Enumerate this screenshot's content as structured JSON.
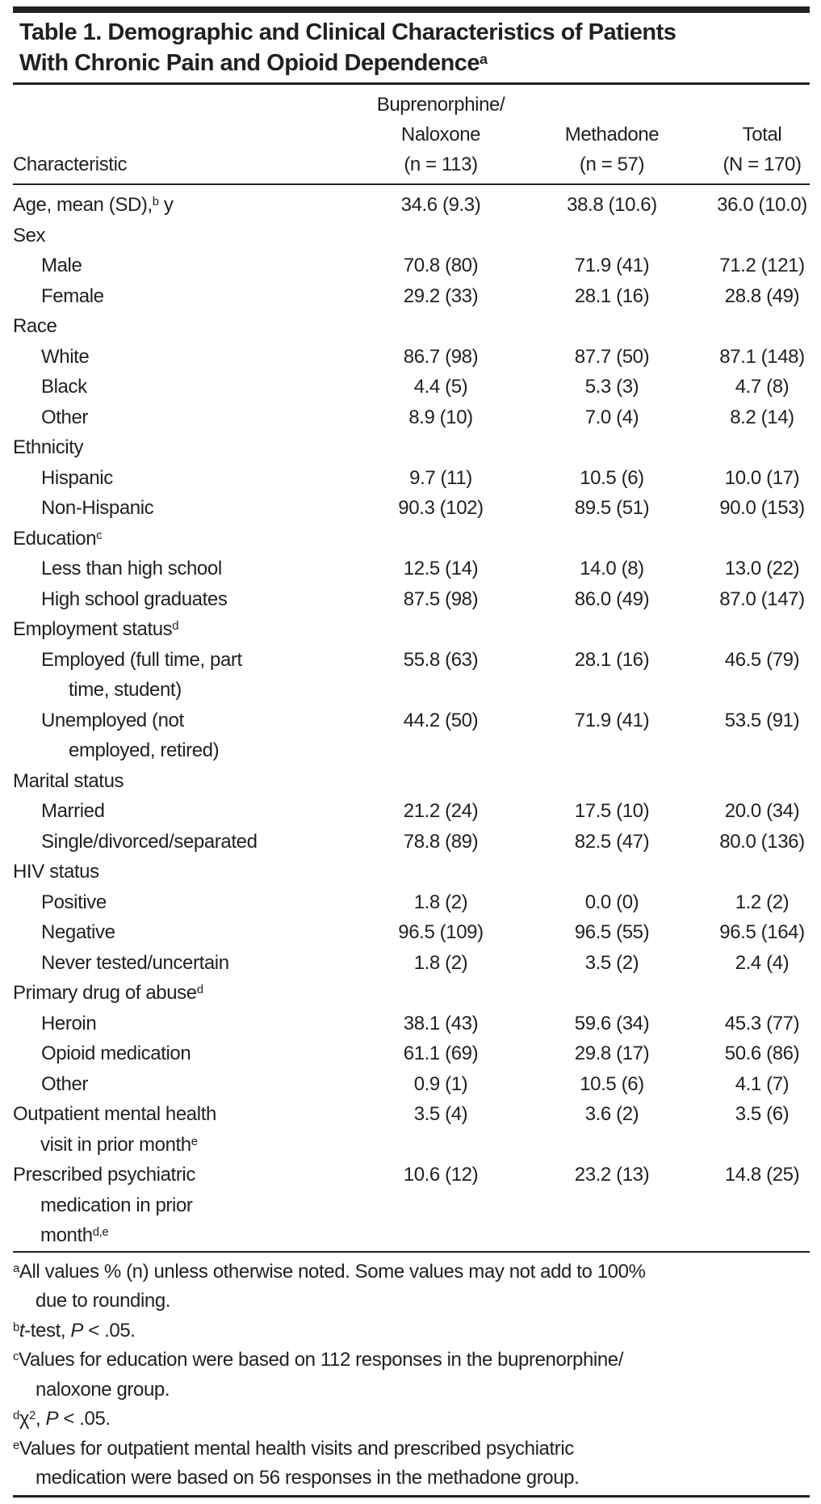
{
  "colors": {
    "ink": "#231f20",
    "background": "#ffffff"
  },
  "title": {
    "lines": [
      "Table 1. Demographic and Clinical Characteristics of Patients",
      "With Chronic Pain and Opioid Dependence^{a}"
    ]
  },
  "table": {
    "header": {
      "characteristic": "Characteristic",
      "columns": [
        {
          "lines": [
            "Buprenorphine/",
            "Naloxone",
            "(n = 113)"
          ]
        },
        {
          "lines": [
            "",
            "Methadone",
            "(n = 57)"
          ]
        },
        {
          "lines": [
            "",
            "Total",
            "(N = 170)"
          ]
        }
      ]
    },
    "rows": [
      {
        "indent": 0,
        "label_lines": [
          "Age, mean (SD),^{b} y"
        ],
        "values": [
          "34.6 (9.3)",
          "38.8 (10.6)",
          "36.0 (10.0)"
        ]
      },
      {
        "indent": 0,
        "label_lines": [
          "Sex"
        ],
        "values": [
          "",
          "",
          ""
        ]
      },
      {
        "indent": 1,
        "label_lines": [
          "Male"
        ],
        "values": [
          "70.8 (80)",
          "71.9 (41)",
          "71.2 (121)"
        ]
      },
      {
        "indent": 1,
        "label_lines": [
          "Female"
        ],
        "values": [
          "29.2 (33)",
          "28.1 (16)",
          "28.8 (49)"
        ]
      },
      {
        "indent": 0,
        "label_lines": [
          "Race"
        ],
        "values": [
          "",
          "",
          ""
        ]
      },
      {
        "indent": 1,
        "label_lines": [
          "White"
        ],
        "values": [
          "86.7 (98)",
          "87.7 (50)",
          "87.1 (148)"
        ]
      },
      {
        "indent": 1,
        "label_lines": [
          "Black"
        ],
        "values": [
          "4.4 (5)",
          "5.3 (3)",
          "4.7 (8)"
        ]
      },
      {
        "indent": 1,
        "label_lines": [
          "Other"
        ],
        "values": [
          "8.9 (10)",
          "7.0 (4)",
          "8.2 (14)"
        ]
      },
      {
        "indent": 0,
        "label_lines": [
          "Ethnicity"
        ],
        "values": [
          "",
          "",
          ""
        ]
      },
      {
        "indent": 1,
        "label_lines": [
          "Hispanic"
        ],
        "values": [
          "9.7 (11)",
          "10.5 (6)",
          "10.0 (17)"
        ]
      },
      {
        "indent": 1,
        "label_lines": [
          "Non-Hispanic"
        ],
        "values": [
          "90.3 (102)",
          "89.5 (51)",
          "90.0 (153)"
        ]
      },
      {
        "indent": 0,
        "label_lines": [
          "Education^{c}"
        ],
        "values": [
          "",
          "",
          ""
        ]
      },
      {
        "indent": 1,
        "label_lines": [
          "Less than high school"
        ],
        "values": [
          "12.5 (14)",
          "14.0 (8)",
          "13.0 (22)"
        ]
      },
      {
        "indent": 1,
        "label_lines": [
          "High school graduates"
        ],
        "values": [
          "87.5 (98)",
          "86.0 (49)",
          "87.0 (147)"
        ]
      },
      {
        "indent": 0,
        "label_lines": [
          "Employment status^{d}"
        ],
        "values": [
          "",
          "",
          ""
        ]
      },
      {
        "indent": 1,
        "label_lines": [
          "Employed (full time, part",
          "time, student)"
        ],
        "values": [
          "55.8 (63)",
          "28.1 (16)",
          "46.5 (79)"
        ]
      },
      {
        "indent": 1,
        "label_lines": [
          "Unemployed (not",
          "employed, retired)"
        ],
        "values": [
          "44.2 (50)",
          "71.9 (41)",
          "53.5 (91)"
        ]
      },
      {
        "indent": 0,
        "label_lines": [
          "Marital status"
        ],
        "values": [
          "",
          "",
          ""
        ]
      },
      {
        "indent": 1,
        "label_lines": [
          "Married"
        ],
        "values": [
          "21.2 (24)",
          "17.5 (10)",
          "20.0 (34)"
        ]
      },
      {
        "indent": 1,
        "label_lines": [
          "Single/divorced/separated"
        ],
        "values": [
          "78.8 (89)",
          "82.5 (47)",
          "80.0 (136)"
        ]
      },
      {
        "indent": 0,
        "label_lines": [
          "HIV status"
        ],
        "values": [
          "",
          "",
          ""
        ]
      },
      {
        "indent": 1,
        "label_lines": [
          "Positive"
        ],
        "values": [
          "1.8 (2)",
          "0.0 (0)",
          "1.2 (2)"
        ]
      },
      {
        "indent": 1,
        "label_lines": [
          "Negative"
        ],
        "values": [
          "96.5 (109)",
          "96.5 (55)",
          "96.5 (164)"
        ]
      },
      {
        "indent": 1,
        "label_lines": [
          "Never tested/uncertain"
        ],
        "values": [
          "1.8 (2)",
          "3.5 (2)",
          "2.4 (4)"
        ]
      },
      {
        "indent": 0,
        "label_lines": [
          "Primary drug of abuse^{d}"
        ],
        "values": [
          "",
          "",
          ""
        ]
      },
      {
        "indent": 1,
        "label_lines": [
          "Heroin"
        ],
        "values": [
          "38.1 (43)",
          "59.6 (34)",
          "45.3 (77)"
        ]
      },
      {
        "indent": 1,
        "label_lines": [
          "Opioid medication"
        ],
        "values": [
          "61.1 (69)",
          "29.8 (17)",
          "50.6 (86)"
        ]
      },
      {
        "indent": 1,
        "label_lines": [
          "Other"
        ],
        "values": [
          "0.9 (1)",
          "10.5 (6)",
          "4.1 (7)"
        ]
      },
      {
        "indent": 0,
        "label_lines": [
          "Outpatient mental health",
          "visit in prior month^{e}"
        ],
        "values": [
          "3.5 (4)",
          "3.6 (2)",
          "3.5 (6)"
        ]
      },
      {
        "indent": 0,
        "label_lines": [
          "Prescribed psychiatric",
          "medication in prior",
          "month^{d,e}"
        ],
        "values": [
          "10.6 (12)",
          "23.2 (13)",
          "14.8 (25)"
        ]
      }
    ]
  },
  "footnotes": [
    {
      "lines": [
        "^{a}All values % (n) unless otherwise noted. Some values may not add to 100%",
        "due to rounding."
      ]
    },
    {
      "lines": [
        "^{b}*t*-test, *P* < .05."
      ]
    },
    {
      "lines": [
        "^{c}Values for education were based on 112 responses in the buprenorphine/",
        "naloxone group."
      ]
    },
    {
      "lines": [
        "^{d}χ^{2}, *P* < .05."
      ]
    },
    {
      "lines": [
        "^{e}Values for outpatient mental health visits and prescribed psychiatric",
        "medication were based on 56 responses in the methadone group."
      ]
    }
  ]
}
